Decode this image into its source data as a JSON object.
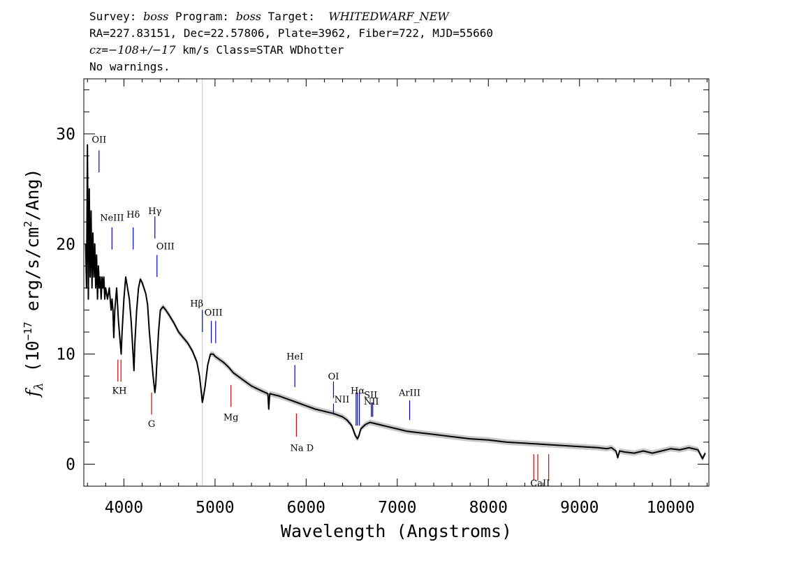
{
  "header": {
    "line1": {
      "survey_label": "Survey: ",
      "survey": "boss",
      "program_label": " Program: ",
      "program": "boss",
      "target_label": " Target:  ",
      "target": "WHITEDWARF_NEW"
    },
    "line2": "RA=227.83151, Dec=22.57806, Plate=3962, Fiber=722, MJD=55660",
    "line3": {
      "cz_label": "cz",
      "cz_eq": "=",
      "cz_value": "−108+/−17",
      "cz_rest": " km/s Class=STAR WDhotter"
    },
    "line4": "No warnings."
  },
  "chart_data": {
    "type": "line",
    "xlabel": "Wavelength (Angstroms)",
    "ylabel_prefix": "f",
    "ylabel_sub": "λ",
    "ylabel_main": " (10",
    "ylabel_exp": "−17",
    "ylabel_mid": " erg/s/cm",
    "ylabel_exp2": "2",
    "ylabel_end": "/Ang)",
    "xlim": [
      3560,
      10420
    ],
    "ylim": [
      -2,
      35
    ],
    "x_ticks": [
      4000,
      5000,
      6000,
      7000,
      8000,
      9000,
      10000
    ],
    "x_tick_labels": [
      "4000",
      "5000",
      "6000",
      "7000",
      "8000",
      "9000",
      "10000"
    ],
    "y_ticks": [
      0,
      10,
      20,
      30
    ],
    "y_tick_labels": [
      "0",
      "10",
      "20",
      "30"
    ],
    "colors": {
      "spectrum": "#000000",
      "error_band": "#c8c8c8",
      "emission_lines": "#0000dd",
      "absorption_lines": "#dd0000",
      "vertical_marker": "#c8c8c8"
    },
    "vertical_marker_x": 4861,
    "series": [
      {
        "x": [
          3580,
          3590,
          3600,
          3610,
          3620,
          3630,
          3640,
          3650,
          3660,
          3670,
          3680,
          3690,
          3700,
          3710,
          3720,
          3730,
          3740,
          3750,
          3760,
          3770,
          3780,
          3790,
          3800,
          3820,
          3840,
          3860,
          3870,
          3880,
          3889,
          3900,
          3920,
          3940,
          3960,
          3970,
          3980,
          4000,
          4020,
          4040,
          4060,
          4080,
          4100,
          4110,
          4120,
          4140,
          4160,
          4180,
          4200,
          4220,
          4240,
          4260,
          4280,
          4300,
          4320,
          4340,
          4350,
          4360,
          4380,
          4400,
          4430,
          4460,
          4500,
          4550,
          4600,
          4650,
          4700,
          4750,
          4800,
          4830,
          4850,
          4861,
          4870,
          4890,
          4920,
          4950,
          4980,
          5000,
          5050,
          5100,
          5150,
          5200,
          5300,
          5400,
          5500,
          5580,
          5590,
          5600,
          5700,
          5800,
          5900,
          6000,
          6100,
          6200,
          6300,
          6400,
          6450,
          6500,
          6540,
          6563,
          6580,
          6600,
          6650,
          6700,
          6800,
          6900,
          7000,
          7100,
          7200,
          7400,
          7600,
          7800,
          8000,
          8200,
          8400,
          8600,
          8800,
          9000,
          9200,
          9300,
          9350,
          9400,
          9420,
          9440,
          9500,
          9600,
          9700,
          9800,
          9900,
          10000,
          10100,
          10200,
          10300,
          10350,
          10380
        ],
        "y": [
          20,
          16,
          29,
          15,
          25,
          17,
          23,
          16,
          21,
          17,
          20,
          16,
          19,
          15,
          18,
          16,
          17,
          15,
          17,
          16,
          17,
          15,
          16,
          15,
          16,
          14,
          15,
          14,
          11.5,
          14,
          16,
          13,
          11,
          10,
          12,
          15,
          17,
          16,
          15,
          13,
          10,
          8.5,
          11,
          14,
          16,
          16.8,
          16.5,
          16,
          15.5,
          14.5,
          12,
          10,
          8,
          6.5,
          7.3,
          9,
          12,
          14,
          14.3,
          14,
          13.5,
          12.8,
          12,
          11.5,
          11,
          10.3,
          9.3,
          8,
          6.5,
          5.6,
          6,
          7,
          9,
          10,
          10,
          9.8,
          9.5,
          9.2,
          8.8,
          8.3,
          7.7,
          7.1,
          6.7,
          6.4,
          5,
          6.4,
          6.2,
          5.9,
          5.6,
          5.3,
          5,
          4.8,
          4.6,
          4.3,
          4,
          3.5,
          2.6,
          2.3,
          2.6,
          3.2,
          3.6,
          3.8,
          3.6,
          3.4,
          3.2,
          3.0,
          2.9,
          2.7,
          2.5,
          2.3,
          2.2,
          2.0,
          1.9,
          1.8,
          1.7,
          1.6,
          1.5,
          1.4,
          1.5,
          1.2,
          0.6,
          1.2,
          1.1,
          1.0,
          1.2,
          1.0,
          1.2,
          1.4,
          1.3,
          1.5,
          1.3,
          0.5,
          1.0
        ]
      }
    ],
    "emission_lines": [
      {
        "label": "OII",
        "x": [
          3727
        ],
        "y1": 26.5,
        "y2": 28.5,
        "label_y": 29.2,
        "label_dx": 0
      },
      {
        "label": "NeIII",
        "x": [
          3869
        ],
        "y1": 19.5,
        "y2": 21.5,
        "label_y": 22.1,
        "label_dx": 0
      },
      {
        "label": "Hδ",
        "x": [
          4102
        ],
        "y1": 19.5,
        "y2": 21.5,
        "label_y": 22.4,
        "label_dx": 0
      },
      {
        "label": "Hγ",
        "x": [
          4340
        ],
        "y1": 20.5,
        "y2": 22.5,
        "label_y": 22.7,
        "label_dx": 0
      },
      {
        "label": "OIII",
        "x": [
          4363
        ],
        "y1": 17.0,
        "y2": 19.0,
        "label_y": 19.5,
        "label_dx": 12
      },
      {
        "label": "Hβ",
        "x": [
          4861
        ],
        "y1": 12.0,
        "y2": 14.0,
        "label_y": 14.3,
        "label_dx": -8
      },
      {
        "label": "OIII",
        "x": [
          4959,
          5007
        ],
        "y1": 11.0,
        "y2": 13.0,
        "label_y": 13.5,
        "label_dx": 0
      },
      {
        "label": "HeI",
        "x": [
          5876
        ],
        "y1": 7.0,
        "y2": 9.0,
        "label_y": 9.5,
        "label_dx": 0
      },
      {
        "label": "OI",
        "x": [
          6300
        ],
        "y1": 6.0,
        "y2": 7.5,
        "label_y": 7.7,
        "label_dx": 0
      },
      {
        "label": "NII",
        "x": [
          6300
        ],
        "y1": 4.5,
        "y2": 5.5,
        "label_y": 5.6,
        "label_dx": 12
      },
      {
        "label": "Hα",
        "x": [
          6548,
          6563,
          6584
        ],
        "y1": 3.5,
        "y2": 6.5,
        "label_y": 6.4,
        "label_dx": 0
      },
      {
        "label": "SII",
        "x": [
          6716,
          6731
        ],
        "y1": 4.3,
        "y2": 5.6,
        "label_y": 6.0,
        "label_dx": -2
      },
      {
        "label": "NII",
        "x": [
          6716
        ],
        "y1": 4.3,
        "y2": 5.6,
        "label_y": 5.4,
        "label_dx": 0
      },
      {
        "label": "ArIII",
        "x": [
          7136
        ],
        "y1": 4.0,
        "y2": 5.8,
        "label_y": 6.2,
        "label_dx": 0
      }
    ],
    "absorption_lines": [
      {
        "label": "KH",
        "x": [
          3934,
          3968
        ],
        "y1": 7.5,
        "y2": 9.5,
        "label_y": 6.4,
        "label_dx": 0
      },
      {
        "label": "G",
        "x": [
          4304
        ],
        "y1": 4.5,
        "y2": 6.5,
        "label_y": 3.4,
        "label_dx": 0
      },
      {
        "label": "Mg",
        "x": [
          5175
        ],
        "y1": 5.2,
        "y2": 7.2,
        "label_y": 4.0,
        "label_dx": 0
      },
      {
        "label": "Na D",
        "x": [
          5893
        ],
        "y1": 2.5,
        "y2": 4.6,
        "label_y": 1.2,
        "label_dx": 8
      },
      {
        "label": "CaII",
        "x": [
          8498,
          8542,
          8662
        ],
        "y1": -1.5,
        "y2": 0.9,
        "label_y": -2.0,
        "label_dx": 0
      }
    ]
  }
}
